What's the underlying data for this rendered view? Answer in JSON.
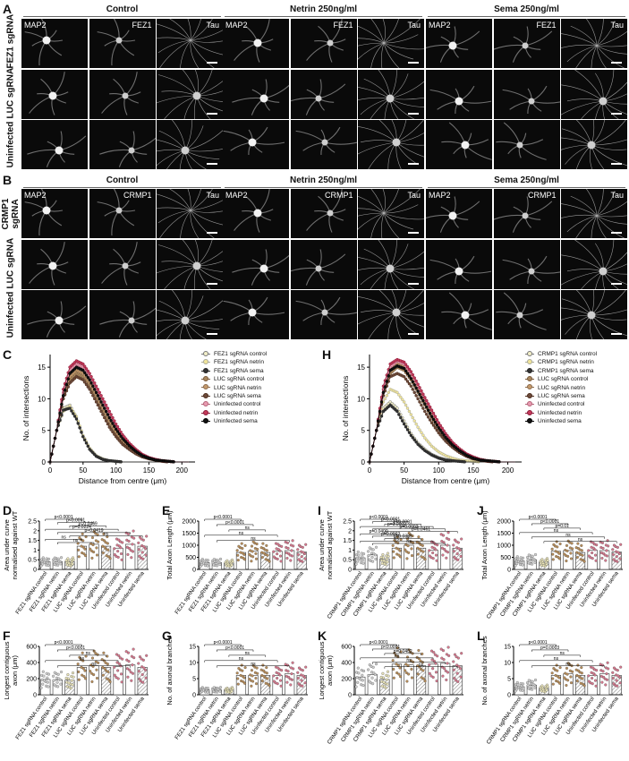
{
  "panels": {
    "A": {
      "letter": "A",
      "conditions": [
        "Control",
        "Netrin 250ng/ml",
        "Sema 250ng/ml"
      ],
      "rows": [
        "FEZ1 sgRNA",
        "LUC sgRNA",
        "Uninfected"
      ],
      "stains": [
        "MAP2",
        "FEZ1",
        "Tau"
      ]
    },
    "B": {
      "letter": "B",
      "conditions": [
        "Control",
        "Netrin 250ng/ml",
        "Sema 250ng/ml"
      ],
      "rows": [
        "CRMP1 sgRNA",
        "LUC sgRNA",
        "Uninfected"
      ],
      "stains": [
        "MAP2",
        "CRMP1",
        "Tau"
      ]
    }
  },
  "sholl_C": {
    "letter": "C",
    "ylabel": "No. of intersections",
    "xlabel": "Distance from centre (μm)",
    "legend": [
      "FEZ1 sgRNA control",
      "FEZ1 sgRNA netrin",
      "FEZ1 sgRNA sema",
      "LUC sgRNA control",
      "LUC sgRNA netrin",
      "LUC sgRNA sema",
      "Uninfected control",
      "Uninfected netrin",
      "Uninfected sema"
    ]
  },
  "sholl_H": {
    "letter": "H",
    "ylabel": "No. of intersections",
    "xlabel": "Distance from centre (μm)",
    "legend": [
      "CRMP1 sgRNA control",
      "CRMP1 sgRNA netrin",
      "CRMP1 sgRNA sema",
      "LUC sgRNA control",
      "LUC sgRNA netrin",
      "LUC sgRNA sema",
      "Uninfected control",
      "Uninfected netrin",
      "Uninfected sema"
    ]
  },
  "bar_panels": [
    {
      "letter": "D",
      "ylabel": "Area under curve normalised against WT",
      "categories": [
        "FEZ1 sgRNA control",
        "FEZ1 sgRNA netrin",
        "FEZ1 sgRNA sema",
        "LUC sgRNA control",
        "LUC sgRNA netrin",
        "LUC sgRNA sema",
        "Uninfected control",
        "Uninfected netrin",
        "Uninfected sema"
      ],
      "stats": [
        "p<0.0001",
        "p<0.0001",
        "p=0.0469",
        "p=0.0224",
        "p=0.0419",
        "ns",
        "ns",
        "ns"
      ]
    },
    {
      "letter": "E",
      "ylabel": "Total Axon Length (μm)",
      "categories": [
        "FEZ1 sgRNA control",
        "FEZ1 sgRNA netrin",
        "FEZ1 sgRNA sema",
        "LUC sgRNA control",
        "LUC sgRNA netrin",
        "LUC sgRNA sema",
        "Uninfected control",
        "Uninfected netrin",
        "Uninfected sema"
      ],
      "stats": [
        "p<0.0001",
        "p<0.0001",
        "ns",
        "ns",
        "ns"
      ]
    },
    {
      "letter": "F",
      "ylabel": "Longest contiguous axon (μm)",
      "categories": [
        "FEZ1 sgRNA control",
        "FEZ1 sgRNA netrin",
        "FEZ1 sgRNA sema",
        "LUC sgRNA control",
        "LUC sgRNA netrin",
        "LUC sgRNA sema",
        "Uninfected control",
        "Uninfected netrin",
        "Uninfected sema"
      ],
      "stats": [
        "p<0.0001",
        "p<0.0001",
        "ns",
        "ns",
        "ns"
      ]
    },
    {
      "letter": "G",
      "ylabel": "No. of axonal branches",
      "categories": [
        "FEZ1 sgRNA control",
        "FEZ1 sgRNA netrin",
        "FEZ1 sgRNA sema",
        "LUC sgRNA control",
        "LUC sgRNA netrin",
        "LUC sgRNA sema",
        "Uninfected control",
        "Uninfected netrin",
        "Uninfected sema"
      ],
      "stats": [
        "p<0.0001",
        "p<0.0001",
        "ns",
        "ns",
        "ns"
      ]
    },
    {
      "letter": "I",
      "ylabel": "Area under curve normalised against WT",
      "categories": [
        "CRMP1 sgRNA control",
        "CRMP1 sgRNA netrin",
        "CRMP1 sgRNA sema",
        "LUC sgRNA control",
        "LUC sgRNA netrin",
        "LUC sgRNA sema",
        "Uninfected control",
        "Uninfected netrin",
        "Uninfected sema"
      ],
      "stats": [
        "p<0.0001",
        "p<0.0001",
        "p<0.0001",
        "p=0.0002",
        "p=0.0002",
        "p=0.0461",
        "p=0.0400",
        "p=0.0002",
        "p=0.0389",
        "ns",
        "ns"
      ]
    },
    {
      "letter": "J",
      "ylabel": "Total Axon Length (μm)",
      "categories": [
        "CRMP1 sgRNA control",
        "CRMP1 sgRNA netrin",
        "CRMP1 sgRNA sema",
        "LUC sgRNA control",
        "LUC sgRNA netrin",
        "LUC sgRNA sema",
        "Uninfected control",
        "Uninfected netrin",
        "Uninfected sema"
      ],
      "stats": [
        "p<0.0001",
        "p<0.0001",
        "p=0.01",
        "ns",
        "ns",
        "ns"
      ]
    },
    {
      "letter": "K",
      "ylabel": "Longest contiguous axon (μm)",
      "categories": [
        "CRMP1 sgRNA control",
        "CRMP1 sgRNA netrin",
        "CRMP1 sgRNA sema",
        "LUC sgRNA control",
        "LUC sgRNA netrin",
        "LUC sgRNA sema",
        "Uninfected control",
        "Uninfected netrin",
        "Uninfected sema"
      ],
      "stats": [
        "p<0.0001",
        "p<0.0001",
        "p=0.0402",
        "ns",
        "ns",
        "ns"
      ]
    },
    {
      "letter": "L",
      "ylabel": "No. of axonal branches",
      "categories": [
        "CRMP1 sgRNA control",
        "CRMP1 sgRNA netrin",
        "CRMP1 sgRNA sema",
        "LUC sgRNA control",
        "LUC sgRNA netrin",
        "LUC sgRNA sema",
        "Uninfected control",
        "Uninfected netrin",
        "Uninfected sema"
      ],
      "stats": [
        "p<0.0001",
        "p=0.0003",
        "ns",
        "ns",
        "ns"
      ]
    }
  ],
  "chart_data": [
    {
      "type": "line",
      "panel": "C",
      "xlabel": "Distance from centre (μm)",
      "ylabel": "No. of intersections",
      "xlim": [
        0,
        220
      ],
      "ylim": [
        0,
        17
      ],
      "xticks": [
        0,
        50,
        100,
        150,
        200
      ],
      "yticks": [
        0,
        5,
        10,
        15
      ],
      "x": [
        0,
        10,
        20,
        30,
        40,
        50,
        60,
        70,
        80,
        90,
        100,
        110,
        120,
        130,
        140,
        150,
        160,
        170,
        180,
        190,
        200,
        210
      ],
      "series": [
        {
          "name": "FEZ1 sgRNA control",
          "values": [
            0,
            5,
            8.5,
            9,
            7,
            4,
            2,
            1,
            0.4,
            0.2,
            0.1,
            0,
            0,
            0,
            0,
            0,
            0,
            0,
            0,
            0,
            0,
            0
          ]
        },
        {
          "name": "FEZ1 sgRNA netrin",
          "values": [
            0,
            5,
            8,
            8.8,
            7.2,
            4.2,
            2.2,
            1,
            0.5,
            0.2,
            0.1,
            0,
            0,
            0,
            0,
            0,
            0,
            0,
            0,
            0,
            0,
            0
          ]
        },
        {
          "name": "FEZ1 sgRNA sema",
          "values": [
            0,
            5,
            8.2,
            8.5,
            6.8,
            4,
            2,
            0.9,
            0.4,
            0.2,
            0.1,
            0,
            0,
            0,
            0,
            0,
            0,
            0,
            0,
            0,
            0,
            0
          ]
        },
        {
          "name": "LUC sgRNA control",
          "values": [
            0,
            5,
            10,
            13,
            14,
            13.5,
            12,
            10,
            8,
            6,
            4.5,
            3.2,
            2.2,
            1.5,
            1,
            0.6,
            0.3,
            0.2,
            0.1,
            0,
            0,
            0
          ]
        },
        {
          "name": "LUC sgRNA netrin",
          "values": [
            0,
            5,
            10.5,
            13.5,
            14.5,
            14,
            12.5,
            10.5,
            8.5,
            6.5,
            4.8,
            3.4,
            2.4,
            1.6,
            1,
            0.6,
            0.3,
            0.2,
            0.1,
            0,
            0,
            0
          ]
        },
        {
          "name": "LUC sgRNA sema",
          "values": [
            0,
            5,
            10,
            12.5,
            13.5,
            13,
            11.5,
            9.5,
            7.5,
            5.5,
            4,
            2.8,
            2,
            1.3,
            0.8,
            0.5,
            0.3,
            0.1,
            0,
            0,
            0,
            0
          ]
        },
        {
          "name": "Uninfected control",
          "values": [
            0,
            5,
            11,
            14.5,
            15.5,
            15,
            13.5,
            11.5,
            9.5,
            7.5,
            5.5,
            4,
            2.8,
            1.8,
            1.1,
            0.7,
            0.4,
            0.2,
            0.1,
            0,
            0,
            0
          ]
        },
        {
          "name": "Uninfected netrin",
          "values": [
            0,
            5,
            11.5,
            15,
            16,
            15.5,
            14,
            12,
            10,
            8,
            6,
            4.3,
            3,
            2,
            1.2,
            0.7,
            0.4,
            0.2,
            0.1,
            0,
            0,
            0
          ]
        },
        {
          "name": "Uninfected sema",
          "values": [
            0,
            5,
            10.5,
            14,
            15,
            14.5,
            13,
            11,
            9,
            7,
            5.2,
            3.7,
            2.6,
            1.7,
            1,
            0.6,
            0.3,
            0.2,
            0.1,
            0,
            0,
            0
          ]
        }
      ]
    },
    {
      "type": "line",
      "panel": "H",
      "xlabel": "Distance from centre (μm)",
      "ylabel": "No. of intersections",
      "xlim": [
        0,
        220
      ],
      "ylim": [
        0,
        17
      ],
      "xticks": [
        0,
        50,
        100,
        150,
        200
      ],
      "yticks": [
        0,
        5,
        10,
        15
      ],
      "x": [
        0,
        10,
        20,
        30,
        40,
        50,
        60,
        70,
        80,
        90,
        100,
        110,
        120,
        130,
        140,
        150,
        160,
        170,
        180,
        190,
        200,
        210
      ],
      "series": [
        {
          "name": "CRMP1 sgRNA control",
          "values": [
            0,
            5,
            8.5,
            9.5,
            8.5,
            6.5,
            4.5,
            3,
            2,
            1.2,
            0.7,
            0.4,
            0.2,
            0.1,
            0,
            0,
            0,
            0,
            0,
            0,
            0,
            0
          ]
        },
        {
          "name": "CRMP1 sgRNA netrin",
          "values": [
            0,
            5,
            9.5,
            11.5,
            11,
            9.5,
            7.5,
            5.5,
            3.8,
            2.5,
            1.6,
            1,
            0.6,
            0.3,
            0.2,
            0.1,
            0,
            0,
            0,
            0,
            0,
            0
          ]
        },
        {
          "name": "CRMP1 sgRNA sema",
          "values": [
            0,
            5,
            8,
            9,
            8,
            6,
            4.2,
            2.8,
            1.8,
            1.1,
            0.6,
            0.3,
            0.2,
            0.1,
            0,
            0,
            0,
            0,
            0,
            0,
            0,
            0
          ]
        },
        {
          "name": "LUC sgRNA control",
          "values": [
            0,
            5,
            11,
            14,
            15,
            14.5,
            13,
            11,
            9,
            7,
            5.2,
            3.7,
            2.6,
            1.7,
            1.1,
            0.7,
            0.4,
            0.2,
            0.1,
            0,
            0,
            0
          ]
        },
        {
          "name": "LUC sgRNA netrin",
          "values": [
            0,
            5,
            11.5,
            14.5,
            15.5,
            15,
            13.5,
            11.5,
            9.5,
            7.5,
            5.5,
            4,
            2.8,
            1.8,
            1.1,
            0.7,
            0.4,
            0.2,
            0.1,
            0,
            0,
            0
          ]
        },
        {
          "name": "LUC sgRNA sema",
          "values": [
            0,
            5,
            10.5,
            13.5,
            14,
            13.5,
            12,
            10,
            8,
            6.2,
            4.6,
            3.3,
            2.3,
            1.5,
            0.9,
            0.5,
            0.3,
            0.1,
            0,
            0,
            0,
            0
          ]
        },
        {
          "name": "Uninfected control",
          "values": [
            0,
            5,
            11.5,
            15,
            16,
            15.5,
            14,
            12,
            10,
            8,
            6,
            4.3,
            3,
            2,
            1.2,
            0.7,
            0.4,
            0.2,
            0.1,
            0,
            0,
            0
          ]
        },
        {
          "name": "Uninfected netrin",
          "values": [
            0,
            5,
            12,
            15.5,
            16.2,
            15.8,
            14.3,
            12.3,
            10.2,
            8.2,
            6.2,
            4.5,
            3.1,
            2.1,
            1.3,
            0.8,
            0.4,
            0.2,
            0.1,
            0,
            0,
            0
          ]
        },
        {
          "name": "Uninfected sema",
          "values": [
            0,
            5,
            11,
            14.5,
            15.2,
            14.8,
            13.2,
            11.2,
            9.2,
            7.2,
            5.4,
            3.9,
            2.7,
            1.8,
            1.1,
            0.6,
            0.3,
            0.2,
            0.1,
            0,
            0,
            0
          ]
        }
      ]
    },
    {
      "type": "bar",
      "panel": "D",
      "categories": [
        "FEZ1 sgRNA control",
        "FEZ1 sgRNA netrin",
        "FEZ1 sgRNA sema",
        "LUC sgRNA control",
        "LUC sgRNA netrin",
        "LUC sgRNA sema",
        "Uninfected control",
        "Uninfected netrin",
        "Uninfected sema"
      ],
      "values": [
        0.4,
        0.4,
        0.4,
        1.2,
        1.3,
        1.2,
        1.1,
        1.3,
        1.2
      ],
      "ylim": [
        0,
        2.5
      ],
      "yticks": [
        0.0,
        0.5,
        1.0,
        1.5,
        2.0,
        2.5
      ]
    },
    {
      "type": "bar",
      "panel": "E",
      "categories": [
        "FEZ1 sgRNA control",
        "FEZ1 sgRNA netrin",
        "FEZ1 sgRNA sema",
        "LUC sgRNA control",
        "LUC sgRNA netrin",
        "LUC sgRNA sema",
        "Uninfected control",
        "Uninfected netrin",
        "Uninfected sema"
      ],
      "values": [
        280,
        280,
        260,
        700,
        760,
        700,
        750,
        780,
        720
      ],
      "ylim": [
        0,
        2000
      ],
      "yticks": [
        0,
        500,
        1000,
        1500,
        2000
      ]
    },
    {
      "type": "bar",
      "panel": "F",
      "categories": [
        "FEZ1 sgRNA control",
        "FEZ1 sgRNA netrin",
        "FEZ1 sgRNA sema",
        "LUC sgRNA control",
        "LUC sgRNA netrin",
        "LUC sgRNA sema",
        "Uninfected control",
        "Uninfected netrin",
        "Uninfected sema"
      ],
      "values": [
        190,
        185,
        180,
        340,
        360,
        340,
        350,
        370,
        340
      ],
      "ylim": [
        0,
        600
      ],
      "yticks": [
        0,
        200,
        400,
        600
      ]
    },
    {
      "type": "bar",
      "panel": "G",
      "categories": [
        "FEZ1 sgRNA control",
        "FEZ1 sgRNA netrin",
        "FEZ1 sgRNA sema",
        "LUC sgRNA control",
        "LUC sgRNA netrin",
        "LUC sgRNA sema",
        "Uninfected control",
        "Uninfected netrin",
        "Uninfected sema"
      ],
      "values": [
        1.5,
        1.5,
        1.5,
        6,
        6,
        6,
        6,
        6.5,
        6
      ],
      "ylim": [
        0,
        15
      ],
      "yticks": [
        0,
        5,
        10,
        15
      ]
    },
    {
      "type": "bar",
      "panel": "I",
      "categories": [
        "CRMP1 sgRNA control",
        "CRMP1 sgRNA netrin",
        "CRMP1 sgRNA sema",
        "LUC sgRNA control",
        "LUC sgRNA netrin",
        "LUC sgRNA sema",
        "Uninfected control",
        "Uninfected netrin",
        "Uninfected sema"
      ],
      "values": [
        0.6,
        0.75,
        0.55,
        1.1,
        1.25,
        1.1,
        1.0,
        1.25,
        1.1
      ],
      "ylim": [
        0,
        2.5
      ],
      "yticks": [
        0.0,
        0.5,
        1.0,
        1.5,
        2.0,
        2.5
      ]
    },
    {
      "type": "bar",
      "panel": "J",
      "categories": [
        "CRMP1 sgRNA control",
        "CRMP1 sgRNA netrin",
        "CRMP1 sgRNA sema",
        "LUC sgRNA control",
        "LUC sgRNA netrin",
        "LUC sgRNA sema",
        "Uninfected control",
        "Uninfected netrin",
        "Uninfected sema"
      ],
      "values": [
        350,
        400,
        300,
        750,
        780,
        700,
        800,
        780,
        720
      ],
      "ylim": [
        0,
        2000
      ],
      "yticks": [
        0,
        500,
        1000,
        1500,
        2000
      ]
    },
    {
      "type": "bar",
      "panel": "K",
      "categories": [
        "CRMP1 sgRNA control",
        "CRMP1 sgRNA netrin",
        "CRMP1 sgRNA sema",
        "LUC sgRNA control",
        "LUC sgRNA netrin",
        "LUC sgRNA sema",
        "Uninfected control",
        "Uninfected netrin",
        "Uninfected sema"
      ],
      "values": [
        220,
        250,
        190,
        380,
        370,
        360,
        380,
        390,
        360
      ],
      "ylim": [
        0,
        600
      ],
      "yticks": [
        0,
        200,
        400,
        600
      ]
    },
    {
      "type": "bar",
      "panel": "L",
      "categories": [
        "CRMP1 sgRNA control",
        "CRMP1 sgRNA netrin",
        "CRMP1 sgRNA sema",
        "LUC sgRNA control",
        "LUC sgRNA netrin",
        "LUC sgRNA sema",
        "Uninfected control",
        "Uninfected netrin",
        "Uninfected sema"
      ],
      "values": [
        2.5,
        3,
        2,
        6,
        6.5,
        6,
        6,
        6.5,
        6
      ],
      "ylim": [
        0,
        15
      ],
      "yticks": [
        0,
        5,
        10,
        15
      ]
    }
  ]
}
